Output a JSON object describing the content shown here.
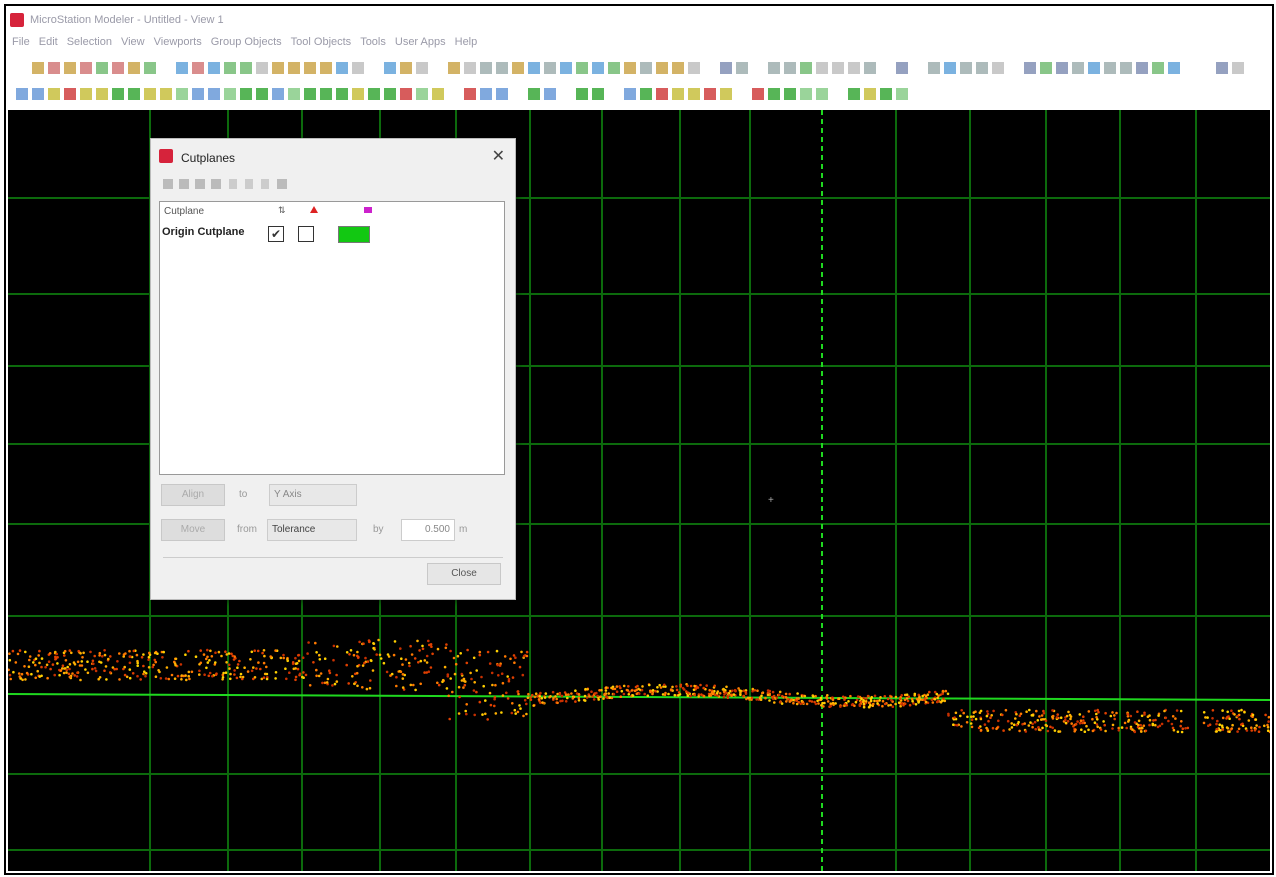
{
  "window": {
    "title": "MicroStation Modeler - Untitled - View 1"
  },
  "menu": [
    "File",
    "Edit",
    "Selection",
    "View",
    "Viewports",
    "Group Objects",
    "Tool Objects",
    "Tools",
    "User Apps",
    "Help"
  ],
  "dialog": {
    "title": "Cutplanes",
    "list_header": "Cutplane",
    "rows": [
      {
        "name": "Origin Cutplane",
        "checked": true
      }
    ],
    "align_button": "Align",
    "to_label": "to",
    "axis": "Y Axis",
    "move_button": "Move",
    "from_label": "from",
    "from_value": "Tolerance",
    "by_label": "by",
    "by_value": "0.500",
    "unit": "m",
    "close_button": "Close"
  }
}
